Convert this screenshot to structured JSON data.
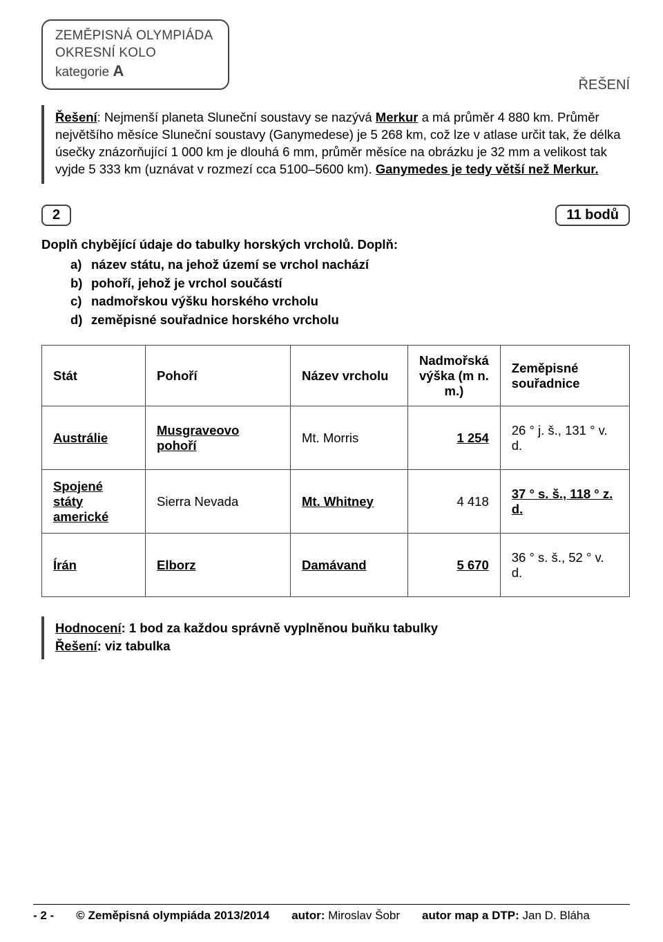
{
  "header": {
    "line1": "ZEMĚPISNÁ OLYMPIÁDA",
    "line2": "OKRESNÍ KOLO",
    "line3_prefix": "kategorie ",
    "category": "A",
    "right_label": "ŘEŠENÍ"
  },
  "solution": {
    "prefix": "Řešení",
    "t1": ": Nejmenší planeta Sluneční soustavy se nazývá ",
    "mercury": "Merkur",
    "t2": " a má průměr 4 880 km. Průměr největšího měsíce Sluneční soustavy (Ganymedese) je 5 268 km, což lze v atlase určit tak, že délka úsečky znázorňující 1 000 km je dlouhá 6 mm, průměr měsíce na obrázku je 32 mm a velikost tak vyjde 5 333 km (uznávat v rozmezí cca 5100–5600 km). ",
    "gany": "Ganymedes je tedy větší než Merkur."
  },
  "task": {
    "number": "2",
    "points": "11 bodů",
    "lead1": "Doplň chybějící údaje do tabulky horských vrcholů. Doplň:",
    "items": [
      {
        "marker": "a)",
        "text": "název státu, na jehož území se vrchol nachází"
      },
      {
        "marker": "b)",
        "text": "pohoří, jehož je vrchol součástí"
      },
      {
        "marker": "c)",
        "text": "nadmořskou výšku horského vrcholu"
      },
      {
        "marker": "d)",
        "text": "zeměpisné souřadnice horského vrcholu"
      }
    ]
  },
  "table": {
    "columns": {
      "c0": "Stát",
      "c1": "Pohoří",
      "c2": "Název vrcholu",
      "c3": "Nadmořská výška (m n. m.)",
      "c4": "Zeměpisné souřadnice"
    },
    "rows": [
      {
        "c0": "Austrálie",
        "c0u": true,
        "c1": "Musgraveovo pohoří",
        "c1u": true,
        "c2": "Mt. Morris",
        "c2u": false,
        "c3": "1 254",
        "c3u": true,
        "c4": "26 ° j. š., 131 ° v. d.",
        "c4u": false
      },
      {
        "c0": "Spojené státy americké",
        "c0u": true,
        "c1": "Sierra Nevada",
        "c1u": false,
        "c2": "Mt. Whitney",
        "c2u": true,
        "c3": "4 418",
        "c3u": false,
        "c4": "37 ° s. š., 118 ° z. d.",
        "c4u": true
      },
      {
        "c0": "Írán",
        "c0u": true,
        "c1": "Elborz",
        "c1u": true,
        "c2": "Damávand",
        "c2u": true,
        "c3": "5 670",
        "c3u": true,
        "c4": "36 ° s. š., 52 ° v. d.",
        "c4u": false
      }
    ]
  },
  "evaluation": {
    "l1_prefix": "Hodnocení",
    "l1_rest": ": 1 bod za každou správně vyplněnou buňku tabulky",
    "l2_prefix": "Řešení",
    "l2_rest": ": viz tabulka"
  },
  "footer": {
    "pagenum": "- 2 -",
    "copyright": "© Zeměpisná olympiáda 2013/2014",
    "author_label": "autor:",
    "author": "Miroslav Šobr",
    "maps_label": "autor map a DTP:",
    "maps_author": "Jan D. Bláha"
  }
}
